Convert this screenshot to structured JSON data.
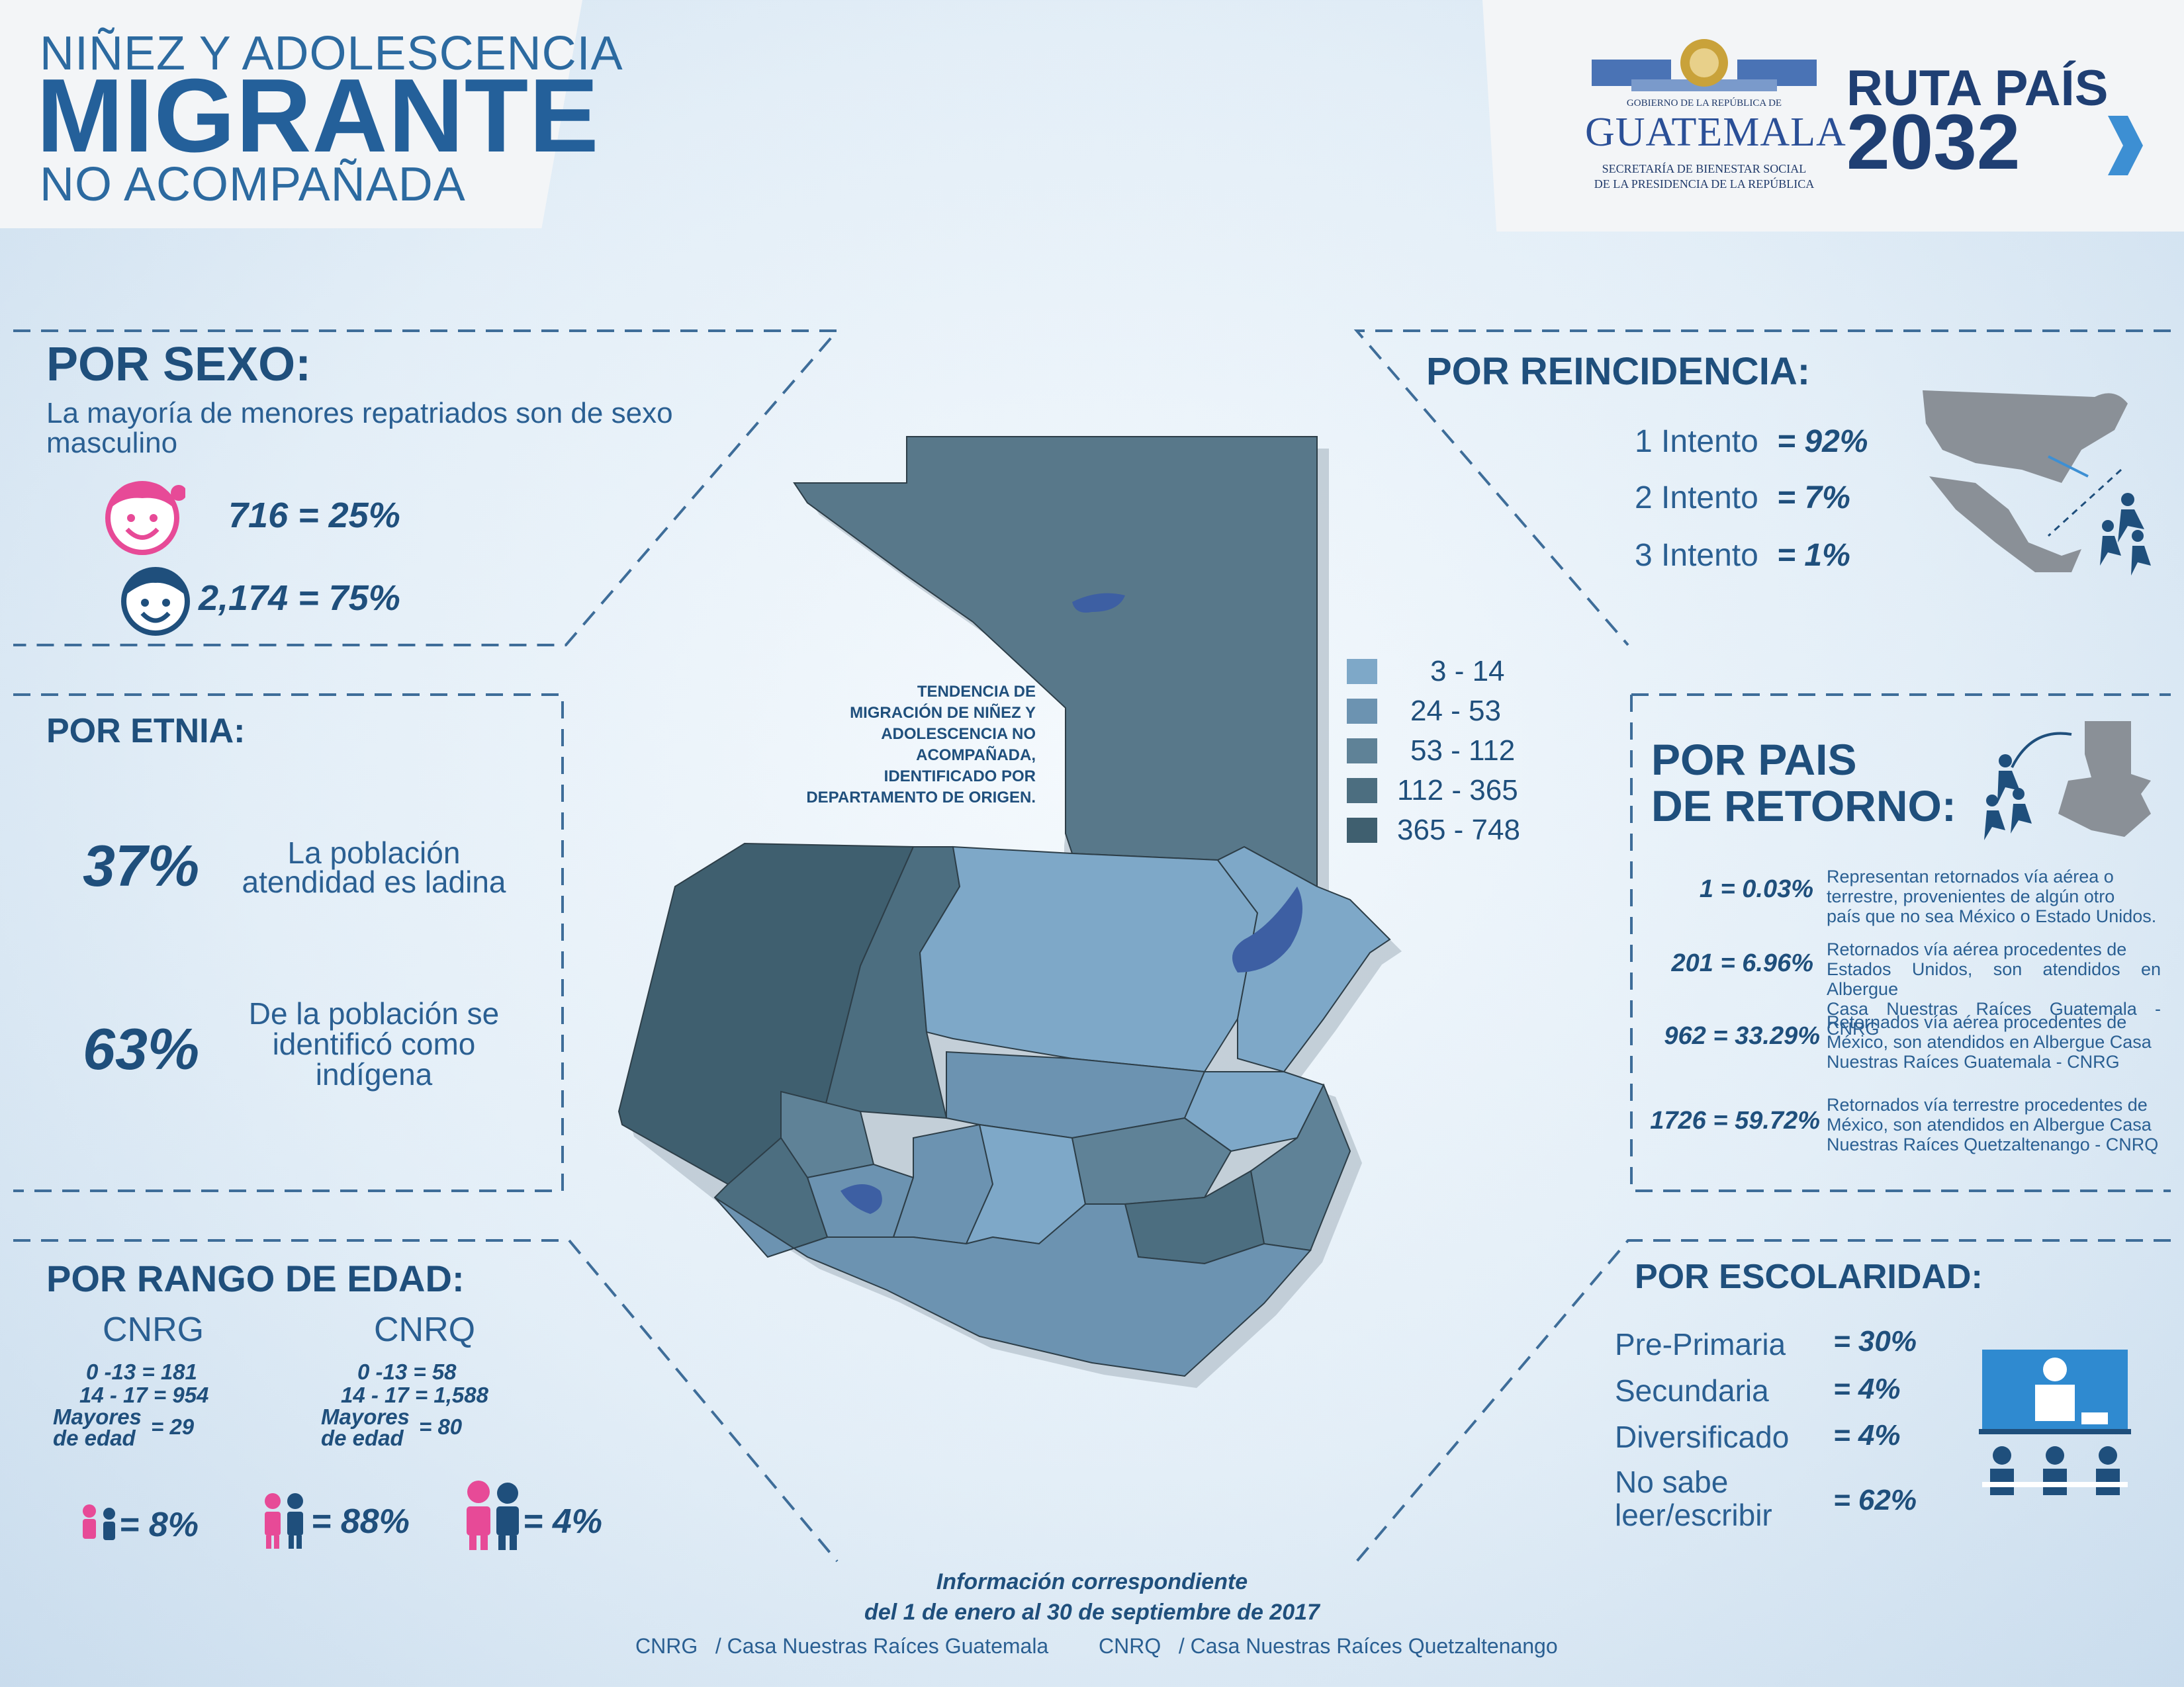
{
  "header": {
    "title_line1": "NIÑEZ Y ADOLESCENCIA",
    "title_line2": "MIGRANTE",
    "title_line3": "NO ACOMPAÑADA",
    "gov_small": "GOBIERNO DE LA REPÚBLICA DE",
    "gov_name": "GUATEMALA",
    "gov_sub1": "SECRETARÍA DE BIENESTAR SOCIAL",
    "gov_sub2": "DE LA PRESIDENCIA DE LA REPÚBLICA",
    "ruta_line1": "RUTA PAÍS",
    "ruta_line2": "2032"
  },
  "sexo": {
    "heading": "POR SEXO:",
    "desc_line1": "La mayoría de menores repatriados son de sexo",
    "desc_line2": "masculino",
    "female": "716 = 25%",
    "male": "2,174 = 75%"
  },
  "etnia": {
    "heading": "POR ETNIA:",
    "pct1": "37%",
    "text1_line1": "La población",
    "text1_line2": "atendidad es ladina",
    "pct2": "63%",
    "text2_line1": "De la población se",
    "text2_line2": "identificó como",
    "text2_line3": "indígena"
  },
  "edad": {
    "heading": "POR RANGO DE EDAD:",
    "cnrg": {
      "label": "CNRG",
      "r1": "0 -13 = 181",
      "r2": "14 - 17 = 954",
      "r3a": "Mayores",
      "r3b": "de edad",
      "r3v": "= 29"
    },
    "cnrq": {
      "label": "CNRQ",
      "r1": "0 -13 = 58",
      "r2": "14 - 17 = 1,588",
      "r3a": "Mayores",
      "r3b": "de edad",
      "r3v": "= 80"
    },
    "p1": "= 8%",
    "p2": "= 88%",
    "p3": "= 4%"
  },
  "map": {
    "caption_l1": "TENDENCIA DE",
    "caption_l2": "MIGRACIÓN DE NIÑEZ Y",
    "caption_l3": "ADOLESCENCIA NO",
    "caption_l4": "ACOMPAÑADA,",
    "caption_l5": "IDENTIFICADO POR",
    "caption_l6": "DEPARTAMENTO DE ORIGEN.",
    "legend": [
      {
        "label": "3 - 14",
        "color": "#7ea8c8"
      },
      {
        "label": "24 - 53",
        "color": "#6c93b1"
      },
      {
        "label": "53 - 112",
        "color": "#5f8297"
      },
      {
        "label": "112 - 365",
        "color": "#4c6e80"
      },
      {
        "label": "365 - 748",
        "color": "#3f5f6f"
      }
    ]
  },
  "reincidencia": {
    "heading": "POR REINCIDENCIA:",
    "items": [
      {
        "label": "1 Intento",
        "value": "= 92%"
      },
      {
        "label": "2 Intento",
        "value": "= 7%"
      },
      {
        "label": "3 Intento",
        "value": "= 1%"
      }
    ]
  },
  "retorno": {
    "heading_l1": "POR PAIS",
    "heading_l2": "DE RETORNO:",
    "items": [
      {
        "stat": "1 = 0.03%",
        "l1": "Representan retornados vía aérea o",
        "l2": "terrestre, provenientes de algún otro",
        "l3": "país que no sea México o Estado Unidos."
      },
      {
        "stat": "201 = 6.96%",
        "l1": "Retornados vía aérea procedentes de",
        "l2": "Estados Unidos, son atendidos en Albergue",
        "l3": "Casa Nuestras Raíces Guatemala - CNRG"
      },
      {
        "stat": "962 = 33.29%",
        "l1": "Retornados vía aérea procedentes de",
        "l2": "México, son atendidos en Albergue Casa",
        "l3": "Nuestras Raíces Guatemala - CNRG"
      },
      {
        "stat": "1726 = 59.72%",
        "l1": "Retornados vía terrestre procedentes de",
        "l2": "México, son atendidos en Albergue Casa",
        "l3": "Nuestras Raíces Quetzaltenango - CNRQ"
      }
    ]
  },
  "escolaridad": {
    "heading": "POR ESCOLARIDAD:",
    "items": [
      {
        "label": "Pre-Primaria",
        "value": "= 30%"
      },
      {
        "label": "Secundaria",
        "value": "= 4%"
      },
      {
        "label": "Diversificado",
        "value": "= 4%"
      }
    ],
    "last_l1": "No sabe",
    "last_l2": "leer/escribir",
    "last_value": "= 62%"
  },
  "footer": {
    "l1": "Información correspondiente",
    "l2": "del 1 de enero al 30 de septiembre de 2017",
    "cnrg": "CNRG   / Casa Nuestras Raíces Guatemala",
    "cnrq": "CNRQ   / Casa Nuestras Raíces Quetzaltenango"
  }
}
